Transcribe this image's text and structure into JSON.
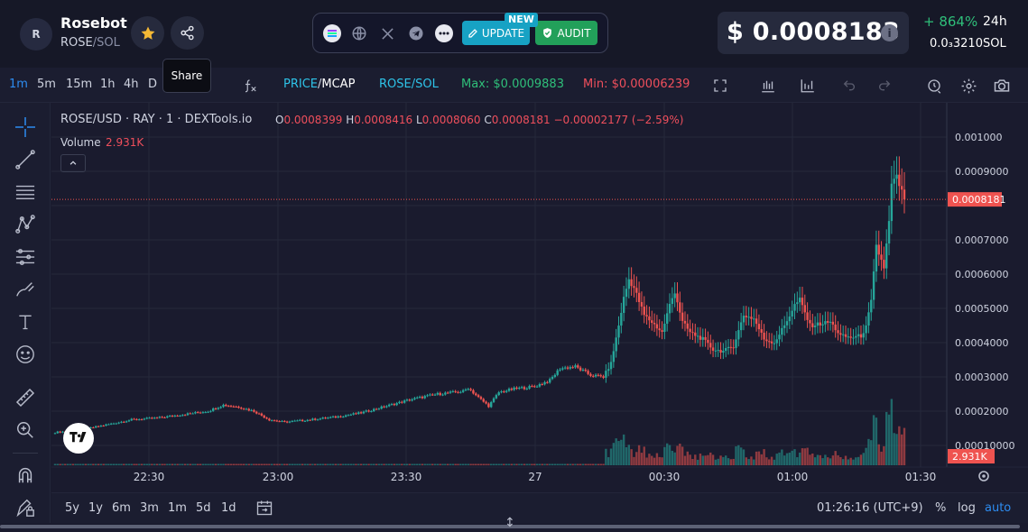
{
  "header": {
    "avatar_letter": "R",
    "token_name": "Rosebot",
    "token_symbol": "ROSE",
    "pair_sep": "/",
    "pair_quote": "SOL",
    "share_tooltip": "Share",
    "update_label": "UPDATE",
    "new_badge": "NEW",
    "audit_label": "AUDIT",
    "price": "$ 0.0008183",
    "info": "i",
    "change": "+ 864%",
    "change_period": "24h",
    "sol_price": "0.0₃3210",
    "sol_label": "SOL"
  },
  "toolbar": {
    "timeframes": [
      "1m",
      "5m",
      "15m",
      "1h",
      "4h",
      "D"
    ],
    "active_timeframe": "1m",
    "price_label": "PRICE",
    "slash": "/",
    "mcap_label": "MCAP",
    "pair_toggle": "ROSE/SOL",
    "max_label": "Max: $0.0009883",
    "min_label": "Min: $0.00006239"
  },
  "legend": {
    "title": "ROSE/USD · RAY · 1 · DEXTools.io",
    "o_key": "O",
    "o_val": "0.0008399",
    "h_key": "H",
    "h_val": "0.0008416",
    "l_key": "L",
    "l_val": "0.0008060",
    "c_key": "C",
    "c_val": "0.0008181",
    "chg": "−0.00002177 (−2.59%)",
    "volume_label": "Volume",
    "volume_value": "2.931K"
  },
  "chart_data": {
    "type": "candlestick",
    "y_ticks": [
      "0.001000",
      "0.0009000",
      "0.0007000",
      "0.0006000",
      "0.0005000",
      "0.0004000",
      "0.0003000",
      "0.0002000",
      "0.00010000"
    ],
    "ylim": [
      0,
      0.00108
    ],
    "x_ticks": [
      "22:30",
      "23:00",
      "23:30",
      "27",
      "00:30",
      "01:00",
      "01:30"
    ],
    "last_price_label": "0.0008181",
    "last_price": 0.0008181,
    "volume_label": "2.931K",
    "colors": {
      "up": "#26a69a",
      "down": "#ef5350",
      "bg": "#1a1b2e",
      "grid": "#25283b"
    },
    "keypoints": [
      [
        0,
        0.000138
      ],
      [
        10,
        0.000145
      ],
      [
        20,
        0.00016
      ],
      [
        30,
        0.000175
      ],
      [
        40,
        0.00018
      ],
      [
        50,
        0.00019
      ],
      [
        60,
        0.0002
      ],
      [
        66,
        0.000218
      ],
      [
        72,
        0.000212
      ],
      [
        78,
        0.0002
      ],
      [
        84,
        0.000175
      ],
      [
        90,
        0.000168
      ],
      [
        100,
        0.000175
      ],
      [
        110,
        0.000183
      ],
      [
        120,
        0.000195
      ],
      [
        130,
        0.000215
      ],
      [
        140,
        0.000235
      ],
      [
        150,
        0.00025
      ],
      [
        160,
        0.000258
      ],
      [
        162,
        0.000268
      ],
      [
        166,
        0.00024
      ],
      [
        170,
        0.000215
      ],
      [
        174,
        0.000255
      ],
      [
        180,
        0.000265
      ],
      [
        188,
        0.000272
      ],
      [
        194,
        0.00029
      ],
      [
        198,
        0.000325
      ],
      [
        204,
        0.00033
      ],
      [
        210,
        0.000305
      ],
      [
        215,
        0.0003
      ],
      [
        218,
        0.00034
      ],
      [
        221,
        0.00045
      ],
      [
        223,
        0.00053
      ],
      [
        225,
        0.000585
      ],
      [
        227,
        0.00056
      ],
      [
        229,
        0.00052
      ],
      [
        231,
        0.00048
      ],
      [
        234,
        0.00046
      ],
      [
        238,
        0.00043
      ],
      [
        241,
        0.00051
      ],
      [
        243,
        0.00055
      ],
      [
        246,
        0.00046
      ],
      [
        249,
        0.00043
      ],
      [
        254,
        0.00041
      ],
      [
        258,
        0.00038
      ],
      [
        262,
        0.000375
      ],
      [
        266,
        0.00039
      ],
      [
        270,
        0.00048
      ],
      [
        274,
        0.00047
      ],
      [
        278,
        0.00041
      ],
      [
        282,
        0.0004
      ],
      [
        286,
        0.00045
      ],
      [
        290,
        0.00051
      ],
      [
        292,
        0.000525
      ],
      [
        296,
        0.00045
      ],
      [
        300,
        0.000455
      ],
      [
        304,
        0.00046
      ],
      [
        308,
        0.00042
      ],
      [
        312,
        0.000415
      ],
      [
        316,
        0.00042
      ],
      [
        318,
        0.000445
      ],
      [
        320,
        0.00052
      ],
      [
        322,
        0.00068
      ],
      [
        325,
        0.00062
      ],
      [
        327,
        0.00075
      ],
      [
        328,
        0.00086
      ],
      [
        330,
        0.00088
      ],
      [
        332,
        0.00084
      ],
      [
        333,
        0.000818
      ]
    ]
  },
  "bottom": {
    "ranges": [
      "5y",
      "1y",
      "6m",
      "3m",
      "1m",
      "5d",
      "1d"
    ],
    "clock": "01:26:16 (UTC+9)",
    "pct": "%",
    "log": "log",
    "auto": "auto"
  }
}
